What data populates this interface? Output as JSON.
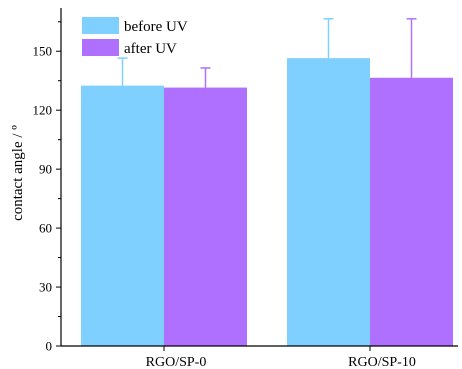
{
  "chart_data": {
    "type": "bar",
    "title": "",
    "xlabel": "",
    "ylabel": "contact angle / º",
    "categories": [
      "RGO/SP-0",
      "RGO/SP-10"
    ],
    "series": [
      {
        "name": "before UV",
        "color": "#80d0ff",
        "values": [
          132.5,
          146.5
        ],
        "errors": [
          14,
          20
        ]
      },
      {
        "name": "after UV",
        "color": "#b070ff",
        "values": [
          131.5,
          136.5
        ],
        "errors": [
          10,
          30
        ]
      }
    ],
    "ylim": [
      0,
      172
    ],
    "yticks": [
      0,
      30,
      60,
      90,
      120,
      150
    ],
    "grid": false,
    "legend_position": "top-left"
  }
}
